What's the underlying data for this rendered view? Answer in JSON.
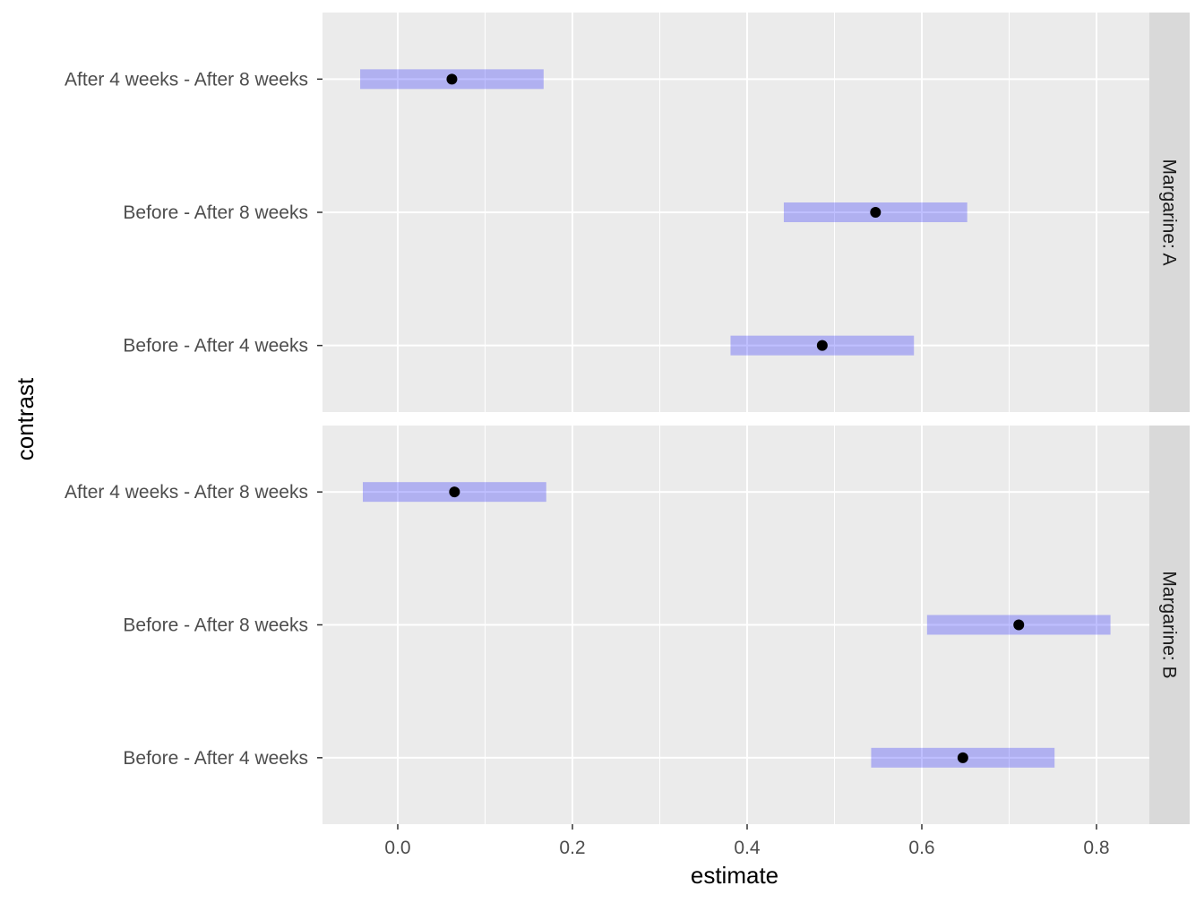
{
  "chart_data": {
    "type": "interval",
    "xlabel": "estimate",
    "ylabel": "contrast",
    "xlim": [
      -0.088,
      0.9
    ],
    "x_ticks": [
      0.0,
      0.2,
      0.4,
      0.6,
      0.8
    ],
    "x_tick_labels": [
      "0.0",
      "0.2",
      "0.4",
      "0.6",
      "0.8"
    ],
    "categories": [
      "After 4 weeks - After 8 weeks",
      "Before - After 8 weeks",
      "Before - After 4 weeks"
    ],
    "grid": true,
    "colors": {
      "panel_bg": "#ebebeb",
      "grid": "#ffffff",
      "strip_bg": "#d9d9d9",
      "interval": "#0000ff",
      "interval_opacity": 0.25,
      "point": "#000000"
    },
    "panels": [
      {
        "strip": "Margarine: A",
        "rows": [
          {
            "contrast": "After 4 weeks - After 8 weeks",
            "estimate": 0.062,
            "lower": -0.043,
            "upper": 0.167
          },
          {
            "contrast": "Before - After 8 weeks",
            "estimate": 0.547,
            "lower": 0.442,
            "upper": 0.652
          },
          {
            "contrast": "Before - After 4 weeks",
            "estimate": 0.486,
            "lower": 0.381,
            "upper": 0.591
          }
        ]
      },
      {
        "strip": "Margarine: B",
        "rows": [
          {
            "contrast": "After 4 weeks - After 8 weeks",
            "estimate": 0.065,
            "lower": -0.04,
            "upper": 0.17
          },
          {
            "contrast": "Before - After 8 weeks",
            "estimate": 0.711,
            "lower": 0.606,
            "upper": 0.816
          },
          {
            "contrast": "Before - After 4 weeks",
            "estimate": 0.647,
            "lower": 0.542,
            "upper": 0.752
          }
        ]
      }
    ]
  }
}
